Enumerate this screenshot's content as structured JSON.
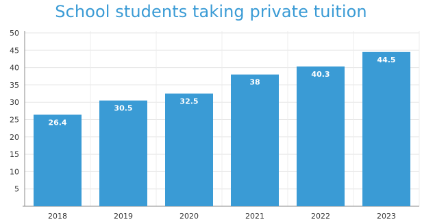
{
  "chart_data": {
    "type": "bar",
    "title": "School students taking private tuition",
    "categories": [
      "2018",
      "2019",
      "2020",
      "2021",
      "2022",
      "2023"
    ],
    "values": [
      26.4,
      30.5,
      32.5,
      38,
      40.3,
      44.5
    ],
    "data_labels": [
      "26.4",
      "30.5",
      "32.5",
      "38",
      "40.3",
      "44.5"
    ],
    "ylim": [
      0,
      50
    ],
    "yticks": [
      5,
      10,
      15,
      20,
      25,
      30,
      35,
      40,
      45,
      50
    ],
    "xlabel": "",
    "ylabel": "",
    "grid": true,
    "bar_color": "#3a9bd5",
    "title_color": "#3a9bd5"
  }
}
